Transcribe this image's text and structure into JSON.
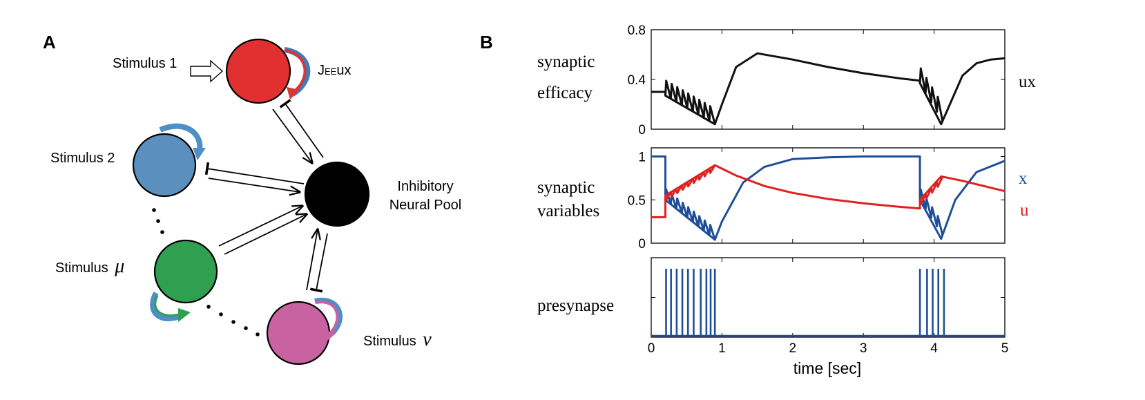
{
  "panel_a": {
    "letter": "A",
    "stimulus_1": "Stimulus 1",
    "stimulus_2": "Stimulus 2",
    "stimulus_mu_prefix": "Stimulus",
    "stimulus_mu_symbol": "μ",
    "stimulus_nu_prefix": "Stimulus",
    "stimulus_nu_symbol": "ν",
    "inhibitory_line1": "Inhibitory",
    "inhibitory_line2": "Neural Pool",
    "j_prefix": "J",
    "j_subscript": "EE",
    "j_suffix": "ux",
    "colors": {
      "stim1": "#e03030",
      "stim2": "#5b8fbe",
      "stim_mu": "#2ea050",
      "stim_nu": "#c862a0",
      "inhibitory": "#000000"
    }
  },
  "panel_b": {
    "letter": "B",
    "top_ylabel_1": "synaptic",
    "top_ylabel_2": "efficacy",
    "top_right_label": "ux",
    "mid_ylabel_1": "synaptic",
    "mid_ylabel_2": "variables",
    "mid_right_x": "x",
    "mid_right_u": "u",
    "bottom_ylabel": "presynapse",
    "xlabel": "time  [sec]"
  },
  "chart_data": [
    {
      "type": "line",
      "ylabel": "synaptic efficacy",
      "ylim": [
        0,
        0.8
      ],
      "xlim": [
        0,
        5
      ],
      "yticks": [
        "0",
        "0.4",
        "0.8"
      ],
      "series": [
        {
          "name": "ux",
          "color": "#111111",
          "x": [
            0,
            0.2,
            0.2,
            0.9,
            1.0,
            1.2,
            1.5,
            2.0,
            2.5,
            3.0,
            3.5,
            3.8,
            3.8,
            4.1,
            4.2,
            4.4,
            4.6,
            4.8,
            5.0
          ],
          "y": [
            0.3,
            0.3,
            0.27,
            0.04,
            0.2,
            0.5,
            0.61,
            0.56,
            0.5,
            0.45,
            0.41,
            0.39,
            0.37,
            0.04,
            0.17,
            0.43,
            0.53,
            0.56,
            0.57
          ]
        }
      ]
    },
    {
      "type": "line",
      "ylabel": "synaptic variables",
      "ylim": [
        0,
        1.1
      ],
      "xlim": [
        0,
        5
      ],
      "yticks": [
        "0",
        "0.5",
        "1"
      ],
      "series": [
        {
          "name": "x",
          "color": "#1f4e99",
          "x": [
            0,
            0.2,
            0.2,
            0.9,
            1.0,
            1.3,
            1.6,
            2.0,
            2.5,
            3.0,
            3.8,
            3.8,
            4.1,
            4.3,
            4.6,
            5.0
          ],
          "y": [
            1,
            1,
            0.5,
            0.04,
            0.25,
            0.7,
            0.88,
            0.97,
            0.99,
            1.0,
            1.0,
            0.5,
            0.05,
            0.5,
            0.82,
            0.95
          ]
        },
        {
          "name": "u",
          "color": "#e02020",
          "x": [
            0,
            0.2,
            0.2,
            0.9,
            1.2,
            1.6,
            2.0,
            2.5,
            3.0,
            3.5,
            3.8,
            3.8,
            4.1,
            4.4,
            4.8,
            5.0
          ],
          "y": [
            0.3,
            0.3,
            0.55,
            0.9,
            0.78,
            0.66,
            0.58,
            0.51,
            0.46,
            0.42,
            0.4,
            0.5,
            0.77,
            0.72,
            0.64,
            0.6
          ]
        }
      ]
    },
    {
      "type": "line",
      "ylabel": "presynapse",
      "xlabel": "time  [sec]",
      "xlim": [
        0,
        5
      ],
      "xticks": [
        "0",
        "1",
        "2",
        "3",
        "4",
        "5"
      ],
      "series": [
        {
          "name": "spikes",
          "color": "#1f4e99",
          "x": [
            0.21,
            0.28,
            0.36,
            0.44,
            0.52,
            0.6,
            0.7,
            0.78,
            0.84,
            0.9,
            3.8,
            3.9,
            3.98,
            4.06,
            4.14
          ]
        }
      ]
    }
  ]
}
